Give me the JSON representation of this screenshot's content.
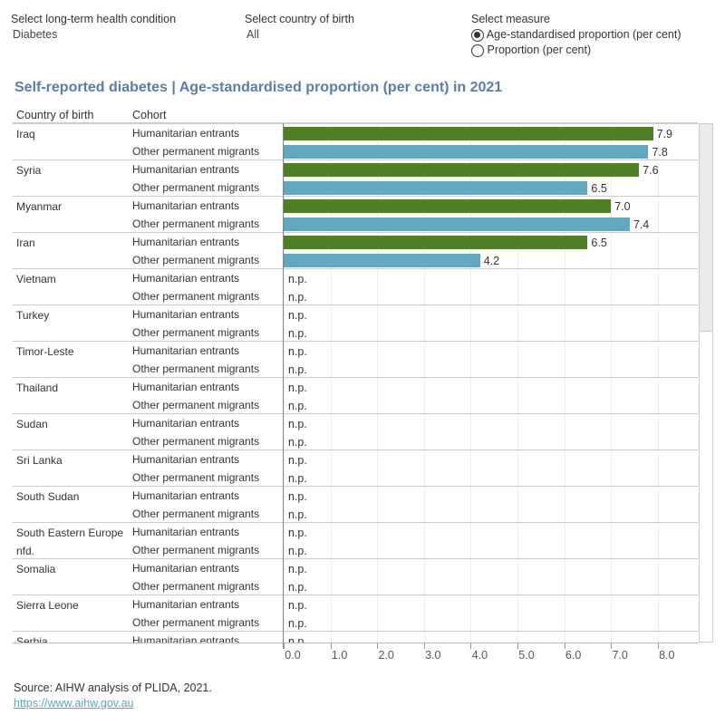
{
  "filters": {
    "condition": {
      "label": "Select long-term health condition",
      "value": "Diabetes"
    },
    "country": {
      "label": "Select country of birth",
      "value": "All"
    },
    "measure": {
      "label": "Select measure",
      "options": [
        {
          "label": "Age-standardised proportion (per cent)",
          "selected": true
        },
        {
          "label": "Proportion (per cent)",
          "selected": false
        }
      ]
    }
  },
  "chart_data": {
    "type": "bar",
    "title": "Self-reported diabetes | Age-standardised proportion (per cent) in 2021",
    "column_headers": [
      "Country of birth",
      "Cohort"
    ],
    "xlim": [
      0,
      8.8
    ],
    "x_ticks": [
      "0.0",
      "1.0",
      "2.0",
      "3.0",
      "4.0",
      "5.0",
      "6.0",
      "7.0",
      "8.0"
    ],
    "colors": {
      "Humanitarian entrants": "#4e8127",
      "Other permanent migrants": "#62a8c0"
    },
    "cohorts": [
      "Humanitarian entrants",
      "Other permanent migrants"
    ],
    "not_published_label": "n.p.",
    "rows": [
      {
        "country": "Iraq",
        "values": [
          7.9,
          7.8
        ]
      },
      {
        "country": "Syria",
        "values": [
          7.6,
          6.5
        ]
      },
      {
        "country": "Myanmar",
        "values": [
          7.0,
          7.4
        ]
      },
      {
        "country": "Iran",
        "values": [
          6.5,
          4.2
        ]
      },
      {
        "country": "Vietnam",
        "values": [
          null,
          null
        ]
      },
      {
        "country": "Turkey",
        "values": [
          null,
          null
        ]
      },
      {
        "country": "Timor-Leste",
        "values": [
          null,
          null
        ]
      },
      {
        "country": "Thailand",
        "values": [
          null,
          null
        ]
      },
      {
        "country": "Sudan",
        "values": [
          null,
          null
        ]
      },
      {
        "country": "Sri Lanka",
        "values": [
          null,
          null
        ]
      },
      {
        "country": "South Sudan",
        "values": [
          null,
          null
        ]
      },
      {
        "country": "South Eastern Europe nfd.",
        "values": [
          null,
          null
        ]
      },
      {
        "country": "Somalia",
        "values": [
          null,
          null
        ]
      },
      {
        "country": "Sierra Leone",
        "values": [
          null,
          null
        ]
      },
      {
        "country": "Serbia",
        "values": [
          null,
          null
        ]
      }
    ]
  },
  "footer": {
    "source": "Source: AIHW analysis of PLIDA, 2021.",
    "link": "https://www.aihw.gov.au"
  }
}
